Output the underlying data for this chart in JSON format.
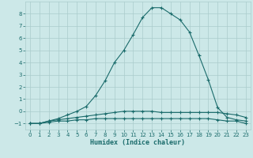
{
  "title": "",
  "xlabel": "Humidex (Indice chaleur)",
  "xlim": [
    -0.5,
    23.5
  ],
  "ylim": [
    -1.5,
    9.0
  ],
  "xticks": [
    0,
    1,
    2,
    3,
    4,
    5,
    6,
    7,
    8,
    9,
    10,
    11,
    12,
    13,
    14,
    15,
    16,
    17,
    18,
    19,
    20,
    21,
    22,
    23
  ],
  "yticks": [
    -1,
    0,
    1,
    2,
    3,
    4,
    5,
    6,
    7,
    8
  ],
  "bg_color": "#cce8e8",
  "grid_color": "#aacccc",
  "line_color": "#1a6b6b",
  "curve1_x": [
    0,
    1,
    2,
    3,
    4,
    5,
    6,
    7,
    8,
    9,
    10,
    11,
    12,
    13,
    14,
    15,
    16,
    17,
    18,
    19,
    20,
    21,
    22,
    23
  ],
  "curve1_y": [
    -1.0,
    -1.0,
    -0.8,
    -0.6,
    -0.3,
    0.0,
    0.4,
    1.3,
    2.5,
    4.0,
    5.0,
    6.3,
    7.7,
    8.5,
    8.5,
    8.0,
    7.5,
    6.5,
    4.6,
    2.6,
    0.3,
    -0.5,
    -0.7,
    -0.8
  ],
  "curve2_x": [
    0,
    1,
    2,
    3,
    4,
    5,
    6,
    7,
    8,
    9,
    10,
    11,
    12,
    13,
    14,
    15,
    16,
    17,
    18,
    19,
    20,
    21,
    22,
    23
  ],
  "curve2_y": [
    -1.0,
    -1.0,
    -0.8,
    -0.7,
    -0.6,
    -0.5,
    -0.4,
    -0.3,
    -0.2,
    -0.1,
    0.0,
    0.0,
    0.0,
    0.0,
    -0.1,
    -0.1,
    -0.1,
    -0.1,
    -0.1,
    -0.1,
    -0.1,
    -0.2,
    -0.3,
    -0.5
  ],
  "curve3_x": [
    0,
    1,
    2,
    3,
    4,
    5,
    6,
    7,
    8,
    9,
    10,
    11,
    12,
    13,
    14,
    15,
    16,
    17,
    18,
    19,
    20,
    21,
    22,
    23
  ],
  "curve3_y": [
    -1.0,
    -1.0,
    -0.9,
    -0.8,
    -0.8,
    -0.7,
    -0.7,
    -0.6,
    -0.6,
    -0.6,
    -0.6,
    -0.6,
    -0.6,
    -0.6,
    -0.6,
    -0.6,
    -0.6,
    -0.6,
    -0.6,
    -0.6,
    -0.7,
    -0.8,
    -0.8,
    -1.0
  ]
}
